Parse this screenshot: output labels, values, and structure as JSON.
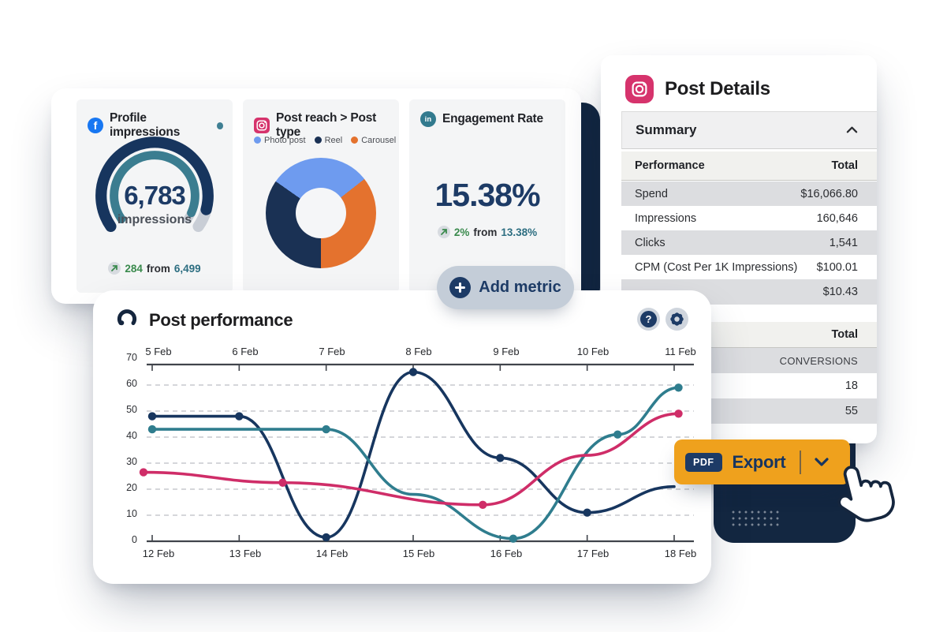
{
  "metrics_card": {
    "tiles": {
      "facebook": {
        "title": "Profile impressions",
        "value": "6,783",
        "value_label": "impressions",
        "delta": "284",
        "from_word": "from",
        "previous": "6,499"
      },
      "instagram": {
        "title": "Post reach > Post type"
      },
      "linkedin": {
        "title": "Engagement Rate",
        "value": "15.38%",
        "delta": "2%",
        "from_word": "from",
        "previous": "13.38%"
      }
    },
    "add_metric_label": "Add metric"
  },
  "post_details": {
    "title": "Post Details",
    "summary_label": "Summary",
    "performance_table": {
      "label_header": "Performance",
      "value_header": "Total",
      "rows": [
        {
          "label": "Spend",
          "value": "$16,066.80"
        },
        {
          "label": "Impressions",
          "value": "160,646"
        },
        {
          "label": "Clicks",
          "value": "1,541"
        },
        {
          "label": "CPM (Cost Per 1K Impressions)",
          "value": "$100.01"
        },
        {
          "label": "",
          "value": "$10.43"
        }
      ]
    },
    "conversions_table": {
      "value_header": "Total",
      "rows": [
        {
          "value": "CONVERSIONS"
        },
        {
          "value": "18"
        },
        {
          "value": "55"
        }
      ]
    }
  },
  "post_performance": {
    "title": "Post performance"
  },
  "export": {
    "badge": "PDF",
    "label": "Export"
  },
  "accent_colors": {
    "navy": "#17365f",
    "teal": "#2f7d8e",
    "pink": "#cf2d68",
    "export_orange": "#efa11d",
    "decor_navy": "#132741"
  },
  "chart_data": [
    {
      "type": "gauge",
      "network": "facebook",
      "title": "Profile impressions",
      "value": 6783,
      "unit": "impressions",
      "delta": 284,
      "previous": 6499,
      "colors": {
        "outer": "#17355e",
        "inner": "#3b7d90",
        "rest": "#c9ced6"
      }
    },
    {
      "type": "pie",
      "network": "instagram",
      "title": "Post reach > Post type",
      "start_deg": 305,
      "slices": [
        {
          "label": "Photo post",
          "color": "#6e9bef",
          "deg": 107,
          "pct": 30
        },
        {
          "label": "Carousel",
          "color": "#e4722e",
          "deg": 128,
          "pct": 35
        },
        {
          "label": "Reel",
          "color": "#1a3154",
          "deg": 125,
          "pct": 35
        }
      ]
    },
    {
      "type": "kpi",
      "network": "linkedin",
      "title": "Engagement Rate",
      "value": "15.38%",
      "delta": "2%",
      "previous": "13.38%"
    },
    {
      "type": "line",
      "title": "Post performance",
      "x_top": [
        "5 Feb",
        "6 Feb",
        "7 Feb",
        "8 Feb",
        "9 Feb",
        "10 Feb",
        "11 Feb"
      ],
      "x_bottom": [
        "12 Feb",
        "13 Feb",
        "14 Feb",
        "15 Feb",
        "16 Feb",
        "17 Feb",
        "18 Feb"
      ],
      "ylim": [
        0,
        70
      ],
      "ytick_labels": [
        "70",
        "60",
        "50",
        "40",
        "30",
        "20",
        "10",
        "0"
      ],
      "grid_values": [
        10,
        20,
        30,
        40,
        50,
        60
      ],
      "grid_style": "dashed-horizontal",
      "series": [
        {
          "name": "series-navy",
          "color": "#17365f",
          "points": [
            [
              0,
              48
            ],
            [
              1,
              48
            ],
            [
              2,
              1.5
            ],
            [
              3,
              65
            ],
            [
              4,
              32
            ],
            [
              5,
              11
            ],
            [
              6,
              21
            ]
          ],
          "markers": [
            [
              0,
              48
            ],
            [
              1,
              48
            ],
            [
              2,
              1.5
            ],
            [
              3,
              65
            ],
            [
              4,
              32
            ],
            [
              5,
              11
            ]
          ]
        },
        {
          "name": "series-teal",
          "color": "#2f7d8e",
          "points": [
            [
              0,
              43
            ],
            [
              1,
              43
            ],
            [
              2,
              43
            ],
            [
              3,
              18
            ],
            [
              4.15,
              1
            ],
            [
              5.35,
              41
            ],
            [
              6.05,
              59
            ]
          ],
          "markers": [
            [
              0,
              43
            ],
            [
              2,
              43
            ],
            [
              4.15,
              1
            ],
            [
              5.35,
              41
            ],
            [
              6.05,
              59
            ]
          ]
        },
        {
          "name": "series-pink",
          "color": "#cf2d68",
          "points": [
            [
              -0.1,
              26.5
            ],
            [
              1.5,
              22.5
            ],
            [
              3.8,
              14
            ],
            [
              5,
              33
            ],
            [
              6.05,
              49
            ]
          ],
          "markers": [
            [
              -0.1,
              26.5
            ],
            [
              1.5,
              22.5
            ],
            [
              3.8,
              14
            ],
            [
              6.05,
              49
            ]
          ]
        }
      ]
    }
  ]
}
